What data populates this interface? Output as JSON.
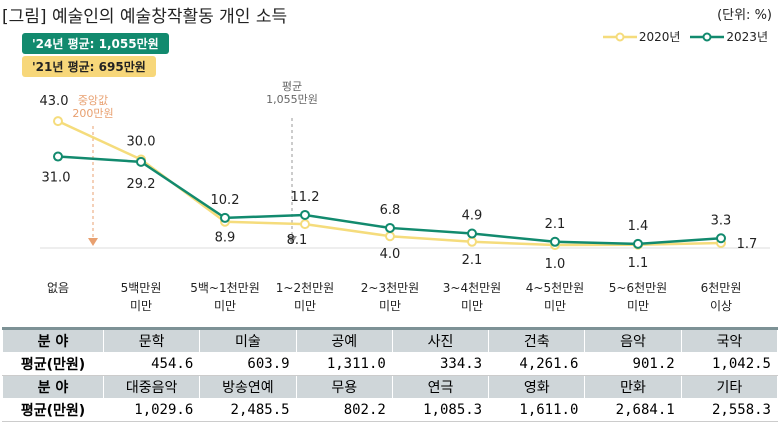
{
  "title": "[그림] 예술인의 예술창작활동 개인 소득",
  "unit": "(단위: %)",
  "badges": {
    "y2024": "'24년 평균: 1,055만원",
    "y2021": "'21년 평균: 695만원"
  },
  "colors": {
    "s2020": "#f5dc7c",
    "s2023": "#128a6e",
    "median": "#e8a070",
    "mean": "#999999"
  },
  "annotations": {
    "median": [
      "중앙값",
      "200만원"
    ],
    "mean": [
      "평균",
      "1,055만원"
    ]
  },
  "chart_data": {
    "type": "line",
    "categories": [
      [
        "없음"
      ],
      [
        "5백만원",
        "미만"
      ],
      [
        "5백~1천만원",
        "미만"
      ],
      [
        "1~2천만원",
        "미만"
      ],
      [
        "2~3천만원",
        "미만"
      ],
      [
        "3~4천만원",
        "미만"
      ],
      [
        "4~5천만원",
        "미만"
      ],
      [
        "5~6천만원",
        "미만"
      ],
      [
        "6천만원",
        "이상"
      ]
    ],
    "series": [
      {
        "name": "2020년",
        "values": [
          43.0,
          30.0,
          8.9,
          8.1,
          4.0,
          2.1,
          1.0,
          1.1,
          1.7
        ]
      },
      {
        "name": "2023년",
        "values": [
          31.0,
          29.2,
          10.2,
          11.2,
          6.8,
          4.9,
          2.1,
          1.4,
          3.3
        ]
      }
    ],
    "ylim": [
      0,
      43
    ],
    "legend": "top-right",
    "grid": false
  },
  "table": {
    "row_label_field": "분 야",
    "row_label_avg": "평균(만원)",
    "rows": [
      {
        "fields": [
          "문학",
          "미술",
          "공예",
          "사진",
          "건축",
          "음악",
          "국악"
        ],
        "values": [
          "454.6",
          "603.9",
          "1,311.0",
          "334.3",
          "4,261.6",
          "901.2",
          "1,042.5"
        ]
      },
      {
        "fields": [
          "대중음악",
          "방송연예",
          "무용",
          "연극",
          "영화",
          "만화",
          "기타"
        ],
        "values": [
          "1,029.6",
          "2,485.5",
          "802.2",
          "1,085.3",
          "1,611.0",
          "2,684.1",
          "2,558.3"
        ]
      }
    ]
  }
}
